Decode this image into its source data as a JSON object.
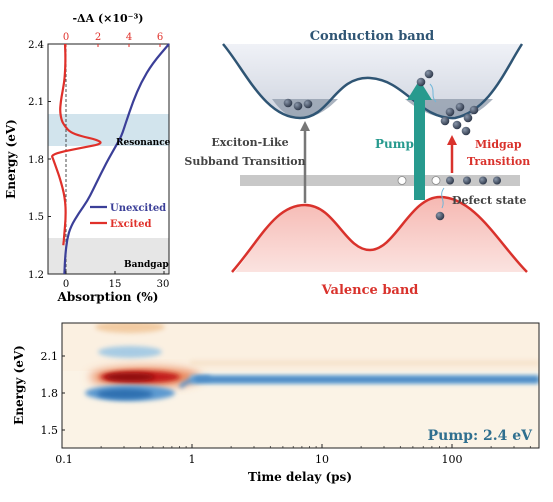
{
  "panel_a": {
    "top_axis_label": "-ΔA (×10⁻³)",
    "top_ticks": [
      "0",
      "2",
      "4",
      "6"
    ],
    "y_label": "Energy (eV)",
    "y_ticks": [
      "1.2",
      "1.5",
      "1.8",
      "2.1",
      "2.4"
    ],
    "x_label": "Absorption (%)",
    "x_ticks": [
      "0",
      "15",
      "30"
    ],
    "resonance_label": "Resonance",
    "bandgap_label": "Bandgap",
    "legend": {
      "unexcited": "Unexcited",
      "excited": "Excited"
    },
    "colors": {
      "unexcited": "#3b3f98",
      "excited": "#e0302a",
      "top_axis": "#e0302a"
    }
  },
  "chart_data": {
    "type": "line",
    "ylabel": "Energy (eV)",
    "ylim": [
      1.2,
      2.4
    ],
    "xlabel": "Absorption (%)",
    "xlim": [
      -5,
      32
    ],
    "series": [
      {
        "name": "Unexcited",
        "axis": "bottom",
        "y": [
          1.2,
          1.3,
          1.38,
          1.45,
          1.52,
          1.58,
          1.64,
          1.7,
          1.75,
          1.8,
          1.86,
          1.92,
          2.0,
          2.1,
          2.2,
          2.3,
          2.4
        ],
        "x": [
          0.0,
          0.3,
          0.8,
          2.0,
          4.5,
          7.0,
          8.8,
          10.5,
          12.0,
          13.5,
          15.5,
          17.5,
          19.0,
          21.0,
          23.5,
          27.0,
          32.0
        ]
      },
      {
        "name": "Excited",
        "axis": "top",
        "xlim": [
          -0.9,
          6.2
        ],
        "y": [
          1.35,
          1.4,
          1.5,
          1.6,
          1.7,
          1.75,
          1.8,
          1.82,
          1.84,
          1.86,
          1.88,
          1.9,
          1.92,
          1.94,
          1.97,
          2.0,
          2.05,
          2.1,
          2.15,
          2.2,
          2.25,
          2.3,
          2.35,
          2.4
        ],
        "x": [
          0.0,
          0.05,
          0.15,
          0.1,
          -0.2,
          -0.4,
          -0.6,
          -0.7,
          0.0,
          1.2,
          2.3,
          2.0,
          1.0,
          0.4,
          0.1,
          -0.1,
          -0.2,
          -0.15,
          -0.05,
          0.05,
          0.1,
          0.12,
          0.12,
          0.1
        ]
      }
    ]
  },
  "diagram": {
    "conduction_band": "Conduction band",
    "valence_band": "Valence band",
    "exciton_line1": "Exciton-Like",
    "exciton_line2": "Subband Transition",
    "pump": "Pump",
    "midgap_line1": "Midgap",
    "midgap_line2": "Transition",
    "defect_state": "Defect state",
    "colors": {
      "conduction": "#2f5574",
      "valence": "#d9322c",
      "pump": "#279a8e",
      "midgap": "#d9322c",
      "exciton_arrow": "#777777"
    }
  },
  "panel_b": {
    "y_label": "Energy (eV)",
    "y_ticks": [
      "1.5",
      "1.8",
      "2.1"
    ],
    "x_label": "Time delay (ps)",
    "x_ticks": [
      "0.1",
      "1",
      "10",
      "100"
    ],
    "x_scale": "log",
    "x_range_ps": [
      0.1,
      520
    ],
    "y_range_ev": [
      1.3,
      2.3
    ],
    "pump_label": "Pump: 2.4 eV",
    "colors": {
      "pump_label": "#2f6f8f",
      "positive": "#c21f1f",
      "negative": "#2f6fb0"
    }
  }
}
